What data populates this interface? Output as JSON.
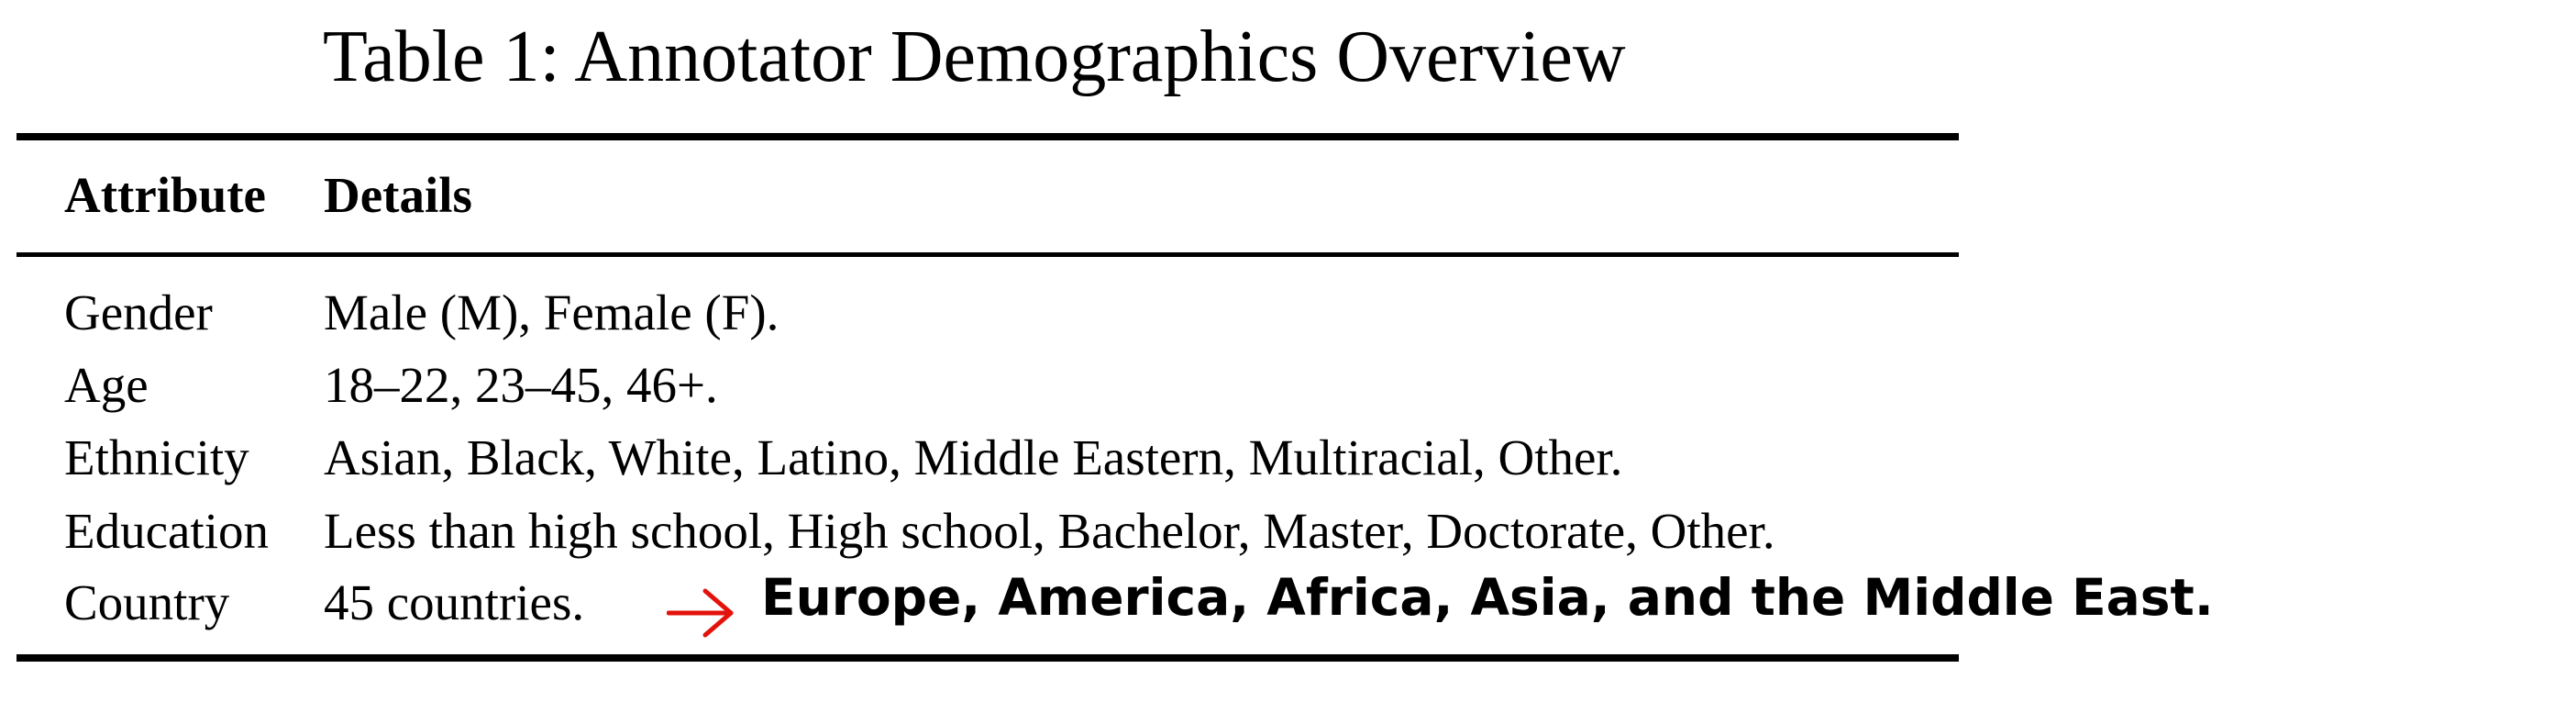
{
  "caption": "Table 1: Annotator Demographics Overview",
  "table": {
    "headers": [
      "Attribute",
      "Details"
    ],
    "rows": [
      {
        "attribute": "Gender",
        "details": "Male (M), Female (F)."
      },
      {
        "attribute": "Age",
        "details": "18–22, 23–45, 46+."
      },
      {
        "attribute": "Ethnicity",
        "details": "Asian, Black, White, Latino, Middle Eastern, Multiracial, Other."
      },
      {
        "attribute": "Education",
        "details": "Less than high school, High school, Bachelor, Master, Doctorate, Other."
      },
      {
        "attribute": "Country",
        "details": "45 countries."
      }
    ]
  },
  "annotation": {
    "arrow_icon": "right-arrow-icon",
    "arrow_color": "#e3120b",
    "text": "Europe, America, Africa, Asia, and the Middle East."
  }
}
